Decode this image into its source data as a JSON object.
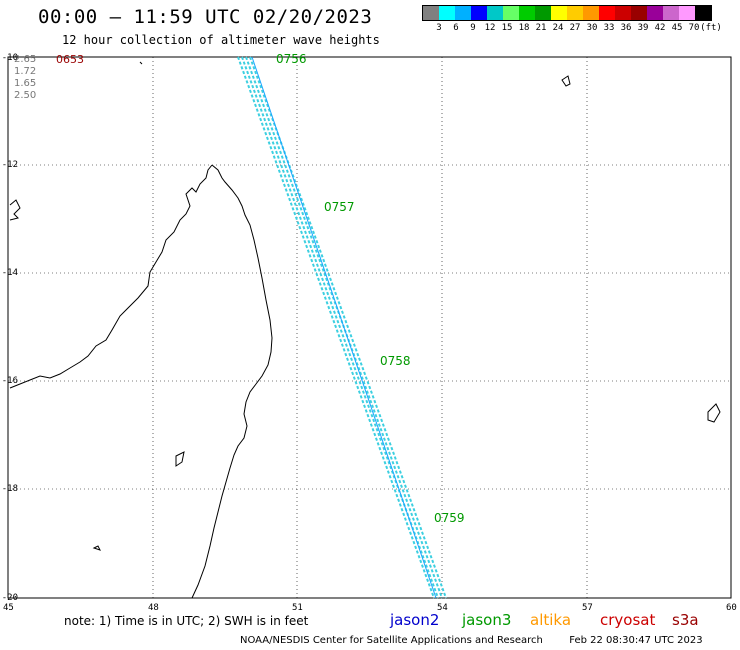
{
  "header": {
    "title": "00:00 – 11:59 UTC 02/20/2023",
    "subtitle": "12 hour collection of altimeter wave heights"
  },
  "legend": {
    "colors": [
      "#808080",
      "#00ffff",
      "#00b0ff",
      "#0000ff",
      "#00c8c8",
      "#66ff66",
      "#00cc00",
      "#009900",
      "#ffff00",
      "#ffcc00",
      "#ff9900",
      "#ff0000",
      "#cc0000",
      "#990000",
      "#990099",
      "#cc66cc",
      "#ff99ff",
      "#000000"
    ],
    "labels": [
      "3",
      "6",
      "9",
      "12",
      "15",
      "18",
      "21",
      "24",
      "27",
      "30",
      "33",
      "36",
      "39",
      "42",
      "45",
      "70",
      "(ft)"
    ]
  },
  "axes": {
    "lat_labels": [
      "-10",
      "-12",
      "-14",
      "-16",
      "-18",
      "-20"
    ],
    "lon_labels": [
      "45",
      "48",
      "51",
      "54",
      "57",
      "60"
    ]
  },
  "corner_values": [
    "2.65",
    "1.72",
    "1.65",
    "2.50"
  ],
  "corner_time": "0653",
  "track_times": [
    "0756",
    "0757",
    "0758",
    "0759"
  ],
  "footer": {
    "note": "note:  1) Time is in UTC;  2) SWH is in feet",
    "satellites": [
      {
        "name": "jason2",
        "color": "#0000cc"
      },
      {
        "name": "jason3",
        "color": "#009900"
      },
      {
        "name": "altika",
        "color": "#ff9900"
      },
      {
        "name": "cryosat",
        "color": "#cc0000"
      },
      {
        "name": "s3a",
        "color": "#990000"
      }
    ],
    "credit": "NOAA/NESDIS Center for Satellite Applications and Research",
    "timestamp": "Feb 22 08:30:47 UTC 2023"
  }
}
